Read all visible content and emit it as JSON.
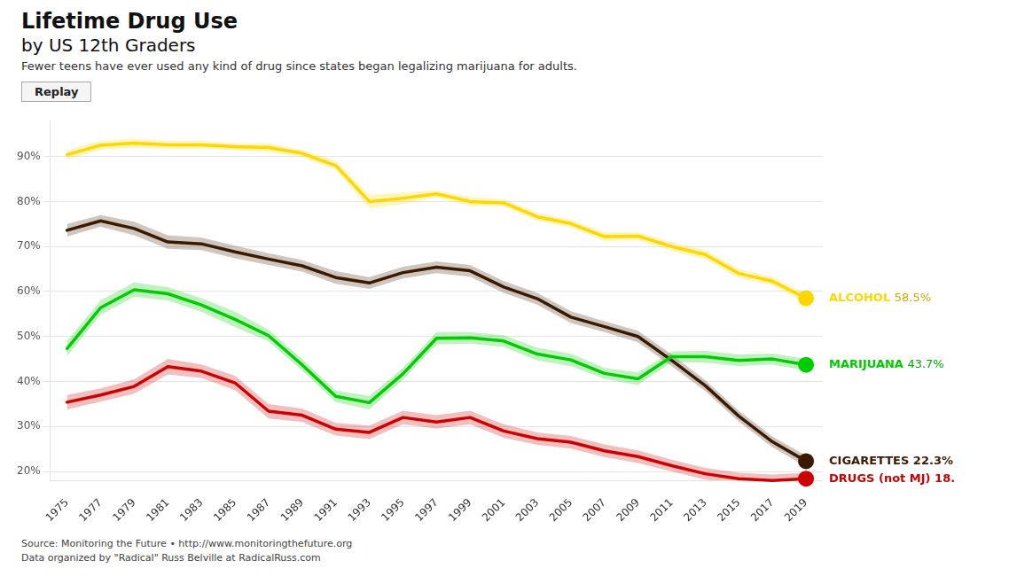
{
  "chart_data": {
    "type": "line",
    "title": [
      "Lifetime Drug Use",
      "by US 12th Graders"
    ],
    "subtitle": "Fewer teens have ever used any kind of drug since states began legalizing marijuana for adults.",
    "source": [
      "Source: Monitoring the Future • http://www.monitoringthefuture.org",
      "Data organized by \"Radical\" Russ Belville at RadicalRuss.com"
    ],
    "button_label": "Replay",
    "x": [
      1975,
      1977,
      1979,
      1981,
      1983,
      1985,
      1987,
      1989,
      1991,
      1993,
      1995,
      1997,
      1999,
      2001,
      2003,
      2005,
      2007,
      2009,
      2011,
      2013,
      2015,
      2017,
      2019
    ],
    "xlim": [
      1974,
      2020
    ],
    "xticks": [
      1975,
      1977,
      1979,
      1981,
      1983,
      1985,
      1987,
      1989,
      1991,
      1993,
      1995,
      1997,
      1999,
      2001,
      2003,
      2005,
      2007,
      2009,
      2011,
      2013,
      2015,
      2017,
      2019
    ],
    "ylim": [
      18,
      98
    ],
    "yticks": [
      {
        "value": 20,
        "label": "20%"
      },
      {
        "value": 30,
        "label": "30%"
      },
      {
        "value": 40,
        "label": "40%"
      },
      {
        "value": 50,
        "label": "50%"
      },
      {
        "value": 60,
        "label": "60%"
      },
      {
        "value": 70,
        "label": "70%"
      },
      {
        "value": 80,
        "label": "80%"
      },
      {
        "value": 90,
        "label": "90%"
      }
    ],
    "grid": "y",
    "series": [
      {
        "color": "#FFD700",
        "values": [
          90.4,
          92.5,
          93.0,
          92.6,
          92.6,
          92.2,
          92.0,
          90.7,
          88.0,
          80.0,
          80.7,
          81.7,
          80.0,
          79.7,
          76.6,
          75.1,
          72.2,
          72.3,
          70.0,
          68.2,
          64.0,
          62.3,
          58.5
        ],
        "upper": [
          91.5,
          93.5,
          94.0,
          93.5,
          93.5,
          93.0,
          93.0,
          91.5,
          89.0,
          81.5,
          82.0,
          82.5,
          81.0,
          80.5,
          77.5,
          76.0,
          73.2,
          73.2,
          71.0,
          69.2,
          65.0,
          63.3,
          59.5
        ],
        "lower": [
          89.3,
          91.5,
          92.0,
          91.7,
          91.7,
          91.4,
          91.0,
          89.9,
          87.0,
          78.5,
          79.4,
          80.9,
          79.0,
          78.9,
          75.7,
          74.2,
          71.2,
          71.4,
          69.0,
          67.2,
          63.0,
          61.3,
          57.5
        ]
      },
      {
        "color": "#00CC00",
        "values": [
          47.3,
          56.4,
          60.4,
          59.5,
          57.0,
          53.8,
          50.2,
          43.7,
          36.7,
          35.3,
          41.7,
          49.6,
          49.7,
          49.0,
          46.1,
          44.8,
          41.8,
          40.6,
          45.5,
          45.5,
          44.7,
          45.0,
          43.7
        ],
        "upper": [
          49.0,
          58.0,
          62.0,
          61.0,
          58.5,
          55.5,
          51.5,
          45.0,
          38.0,
          36.8,
          43.0,
          51.0,
          51.0,
          50.3,
          47.5,
          46.2,
          43.0,
          42.0,
          46.7,
          46.8,
          46.0,
          46.2,
          45.0
        ],
        "lower": [
          45.6,
          54.8,
          58.8,
          58.0,
          55.5,
          52.1,
          48.9,
          42.4,
          35.4,
          33.8,
          40.4,
          48.2,
          48.4,
          47.7,
          44.7,
          43.4,
          40.6,
          39.2,
          44.3,
          44.2,
          43.4,
          43.8,
          42.4
        ]
      },
      {
        "color": "#3B1A00",
        "values": [
          73.6,
          75.7,
          74.0,
          71.0,
          70.6,
          68.8,
          67.2,
          65.7,
          63.1,
          61.9,
          64.2,
          65.4,
          64.6,
          61.0,
          58.4,
          54.3,
          52.2,
          50.0,
          44.7,
          39.1,
          32.3,
          26.6,
          22.3
        ],
        "upper": [
          75.0,
          77.0,
          75.5,
          72.5,
          72.0,
          70.2,
          68.5,
          67.0,
          64.5,
          63.2,
          65.5,
          66.7,
          65.9,
          62.3,
          59.7,
          55.6,
          53.4,
          51.3,
          46.0,
          40.3,
          33.5,
          27.8,
          23.5
        ],
        "lower": [
          72.2,
          74.4,
          72.5,
          69.5,
          69.2,
          67.4,
          65.9,
          64.4,
          61.7,
          60.6,
          62.9,
          64.1,
          63.3,
          59.7,
          57.1,
          53.0,
          51.0,
          48.7,
          43.4,
          37.9,
          31.1,
          25.4,
          21.1
        ]
      },
      {
        "color": "#CC0000",
        "values": [
          35.4,
          37.0,
          38.9,
          43.3,
          42.3,
          39.7,
          33.4,
          32.5,
          29.4,
          28.7,
          32.0,
          31.0,
          32.0,
          29.0,
          27.3,
          26.5,
          24.6,
          23.3,
          21.3,
          19.5,
          18.4,
          18.0,
          18.4
        ],
        "upper": [
          37.0,
          38.5,
          40.5,
          45.0,
          43.8,
          41.3,
          35.0,
          34.0,
          30.8,
          30.2,
          33.5,
          32.5,
          33.5,
          30.5,
          28.7,
          27.9,
          26.0,
          24.7,
          22.6,
          20.8,
          19.7,
          19.3,
          19.7
        ],
        "lower": [
          33.8,
          35.5,
          37.3,
          41.6,
          40.8,
          38.1,
          31.8,
          31.0,
          28.0,
          27.2,
          30.5,
          29.5,
          30.5,
          27.5,
          25.9,
          25.1,
          23.2,
          21.9,
          20.0,
          18.2,
          17.1,
          16.7,
          17.1
        ]
      }
    ],
    "annotations": [
      {
        "text": "ALCOHOL",
        "color": "#FFD700",
        "value_text": "58.5%",
        "value_color": "#CCAA00"
      },
      {
        "text": "MARIJUANA",
        "color": "#00CC00",
        "value_text": "43.7%",
        "value_color": "#00AA00"
      },
      {
        "text": "CIGARETTES 22.3%",
        "color": "#3B1A00"
      },
      {
        "text": "DRUGS (not MJ) 18.",
        "color": "#CC0000"
      }
    ]
  }
}
